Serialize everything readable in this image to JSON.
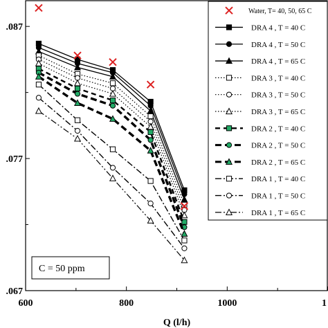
{
  "chart_data": {
    "type": "line",
    "xlabel": "Q (l/h)",
    "ylabel": "",
    "xlim": [
      600,
      1200
    ],
    "ylim": [
      0.067,
      0.089
    ],
    "x_ticks": [
      "600",
      "800",
      "1000",
      "1"
    ],
    "y_ticks": [
      ".067",
      ".077",
      ".087"
    ],
    "annotation": "C = 50 ppm",
    "legend_position": "top-right",
    "x": [
      626,
      703,
      773,
      848,
      915
    ],
    "series": [
      {
        "name": "Water, T= 40, 50, 65 C",
        "marker": "x",
        "color": "#dd2222",
        "line": "none",
        "values": [
          0.0884,
          0.0848,
          0.0843,
          0.0826,
          0.0734
        ]
      },
      {
        "name": "DRA 4 , T = 40 C",
        "marker": "square",
        "fill": "#000000",
        "line": "solid",
        "values": [
          0.0857,
          0.0845,
          0.0837,
          0.0813,
          0.0746
        ]
      },
      {
        "name": "DRA 4 , T = 50 C",
        "marker": "circle",
        "fill": "#000000",
        "line": "solid",
        "values": [
          0.0854,
          0.0842,
          0.0835,
          0.081,
          0.0743
        ]
      },
      {
        "name": "DRA 4 , T = 65 C",
        "marker": "triangle",
        "fill": "#000000",
        "line": "solid",
        "values": [
          0.0851,
          0.0839,
          0.0832,
          0.0806,
          0.0739
        ]
      },
      {
        "name": "DRA 3 , T = 40 C",
        "marker": "square",
        "fill": "#ffffff",
        "line": "dotted",
        "values": [
          0.0848,
          0.0834,
          0.0827,
          0.0802,
          0.0735
        ]
      },
      {
        "name": "DRA 3 , T = 50 C",
        "marker": "circle",
        "fill": "#ffffff",
        "line": "dotted",
        "values": [
          0.0845,
          0.0831,
          0.0823,
          0.0798,
          0.0731
        ]
      },
      {
        "name": "DRA 3 , T = 65 C",
        "marker": "triangle",
        "fill": "#ffffff",
        "line": "dotted",
        "values": [
          0.0842,
          0.0827,
          0.0819,
          0.0794,
          0.0727
        ]
      },
      {
        "name": "DRA 2 , T = 40 C",
        "marker": "square",
        "fill": "#22aa66",
        "line": "dashed",
        "values": [
          0.0838,
          0.0823,
          0.0814,
          0.079,
          0.0722
        ]
      },
      {
        "name": "DRA 2 , T = 50 C",
        "marker": "circle",
        "fill": "#22aa66",
        "line": "dashed-bold",
        "values": [
          0.0835,
          0.0819,
          0.081,
          0.0784,
          0.0718
        ]
      },
      {
        "name": "DRA 2 , T = 65 C",
        "marker": "triangle",
        "fill": "#22aa66",
        "line": "dashed-bold",
        "values": [
          0.0832,
          0.0812,
          0.08,
          0.0776,
          0.0713
        ]
      },
      {
        "name": "DRA 1 , T = 40 C",
        "marker": "square",
        "fill": "#ffffff",
        "line": "dashdot",
        "values": [
          0.0826,
          0.0799,
          0.0777,
          0.0753,
          0.0708
        ]
      },
      {
        "name": "DRA 1 , T = 50 C",
        "marker": "circle",
        "fill": "#ffffff",
        "line": "dashdot",
        "values": [
          0.0816,
          0.0791,
          0.0763,
          0.0736,
          0.0702
        ]
      },
      {
        "name": "DRA 1 , T = 65 C",
        "marker": "triangle",
        "fill": "#ffffff",
        "line": "dashdotdot",
        "values": [
          0.0806,
          0.0785,
          0.0755,
          0.0723,
          0.0693
        ]
      }
    ]
  }
}
